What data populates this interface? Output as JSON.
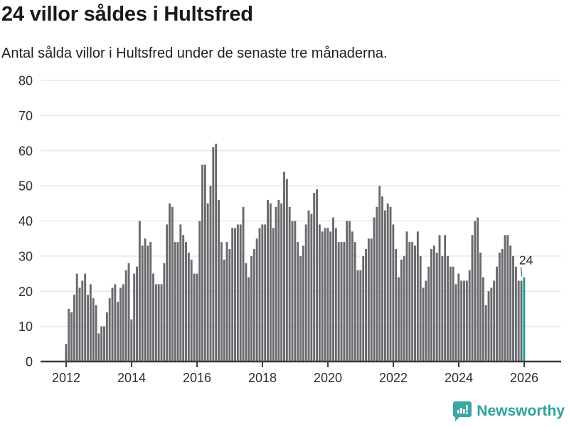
{
  "header": {
    "title": "24 villor såldes i Hultsfred",
    "subtitle": "Antal sålda villor i Hultsfred under de senaste tre månaderna."
  },
  "chart_data": {
    "type": "bar",
    "title": "24 villor såldes i Hultsfred",
    "subtitle": "Antal sålda villor i Hultsfred under de senaste tre månaderna.",
    "x_unit": "month",
    "x_start": "2012-01",
    "x_end": "2026-01",
    "values": [
      5,
      15,
      14,
      19,
      25,
      21,
      23,
      25,
      19,
      22,
      18,
      16,
      8,
      10,
      10,
      14,
      18,
      21,
      22,
      17,
      21,
      22,
      26,
      28,
      12,
      25,
      27,
      40,
      33,
      35,
      33,
      34,
      25,
      22,
      22,
      22,
      28,
      39,
      45,
      44,
      34,
      34,
      39,
      36,
      34,
      31,
      29,
      25,
      25,
      40,
      56,
      56,
      45,
      50,
      61,
      62,
      46,
      34,
      29,
      34,
      32,
      38,
      38,
      39,
      39,
      44,
      28,
      24,
      30,
      32,
      35,
      38,
      39,
      39,
      46,
      45,
      38,
      44,
      46,
      45,
      54,
      52,
      44,
      40,
      40,
      34,
      30,
      33,
      39,
      43,
      42,
      48,
      49,
      39,
      37,
      38,
      38,
      37,
      41,
      38,
      34,
      34,
      34,
      40,
      40,
      37,
      34,
      26,
      26,
      30,
      32,
      35,
      35,
      41,
      44,
      50,
      47,
      43,
      45,
      44,
      39,
      32,
      24,
      29,
      30,
      37,
      34,
      34,
      33,
      37,
      30,
      21,
      23,
      27,
      32,
      33,
      31,
      36,
      30,
      36,
      30,
      27,
      27,
      22,
      25,
      23,
      23,
      23,
      26,
      36,
      40,
      41,
      31,
      24,
      16,
      20,
      21,
      23,
      27,
      31,
      32,
      36,
      36,
      33,
      30,
      27,
      23,
      23,
      24
    ],
    "highlight": {
      "index": 168,
      "value": 24,
      "label": "24"
    },
    "ylim": [
      0,
      80
    ],
    "yticks": [
      0,
      10,
      20,
      30,
      40,
      50,
      60,
      70,
      80
    ],
    "xticks": [
      2012,
      2014,
      2016,
      2018,
      2020,
      2022,
      2024,
      2026
    ],
    "grid": true,
    "legend": null,
    "colors": {
      "bar": "#69696e",
      "highlight": "#1a9e9a",
      "grid": "#e8e8e8",
      "axis": "#3d3d3d",
      "tick_text": "#2e2e2e",
      "annotation_text": "#2b2b2b"
    }
  },
  "branding": {
    "name": "Newsworthy",
    "logo_color": "#3aa7a3"
  }
}
